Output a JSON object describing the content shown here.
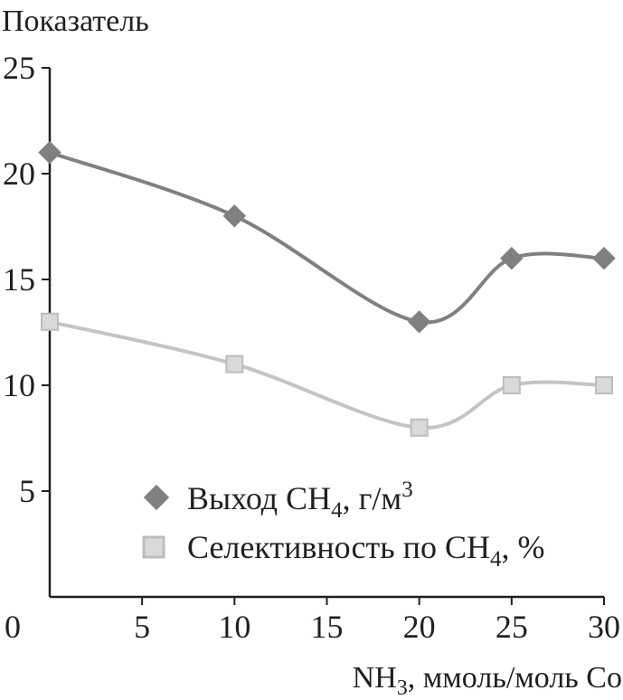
{
  "chart_data": {
    "type": "line",
    "ylabel": "Показатель",
    "xlabel": {
      "main": "NH",
      "sub": "3",
      "rest": ", ммоль/моль Co"
    },
    "xlim": [
      0,
      30
    ],
    "ylim": [
      0,
      25
    ],
    "xticks": [
      "0",
      "5",
      "10",
      "15",
      "20",
      "25",
      "30"
    ],
    "yticks": [
      "5",
      "10",
      "15",
      "20",
      "25"
    ],
    "grid": false,
    "legend_position": "bottom-right",
    "x": [
      0,
      10,
      20,
      25,
      30
    ],
    "series": [
      {
        "name": "Выход CH4, г/м3",
        "legend": {
          "a": "Выход CH",
          "sub": "4",
          "b": ", г/м",
          "sup": "3"
        },
        "marker": "diamond",
        "color": "#808080",
        "values": [
          21,
          18,
          13,
          16,
          16
        ]
      },
      {
        "name": "Селективность по CH4, %",
        "legend": {
          "a": "Селективность по CH",
          "sub": "4",
          "b": ", %",
          "sup": ""
        },
        "marker": "square",
        "color": "#c4c4c4",
        "values": [
          13,
          11,
          8,
          10,
          10
        ]
      }
    ]
  }
}
